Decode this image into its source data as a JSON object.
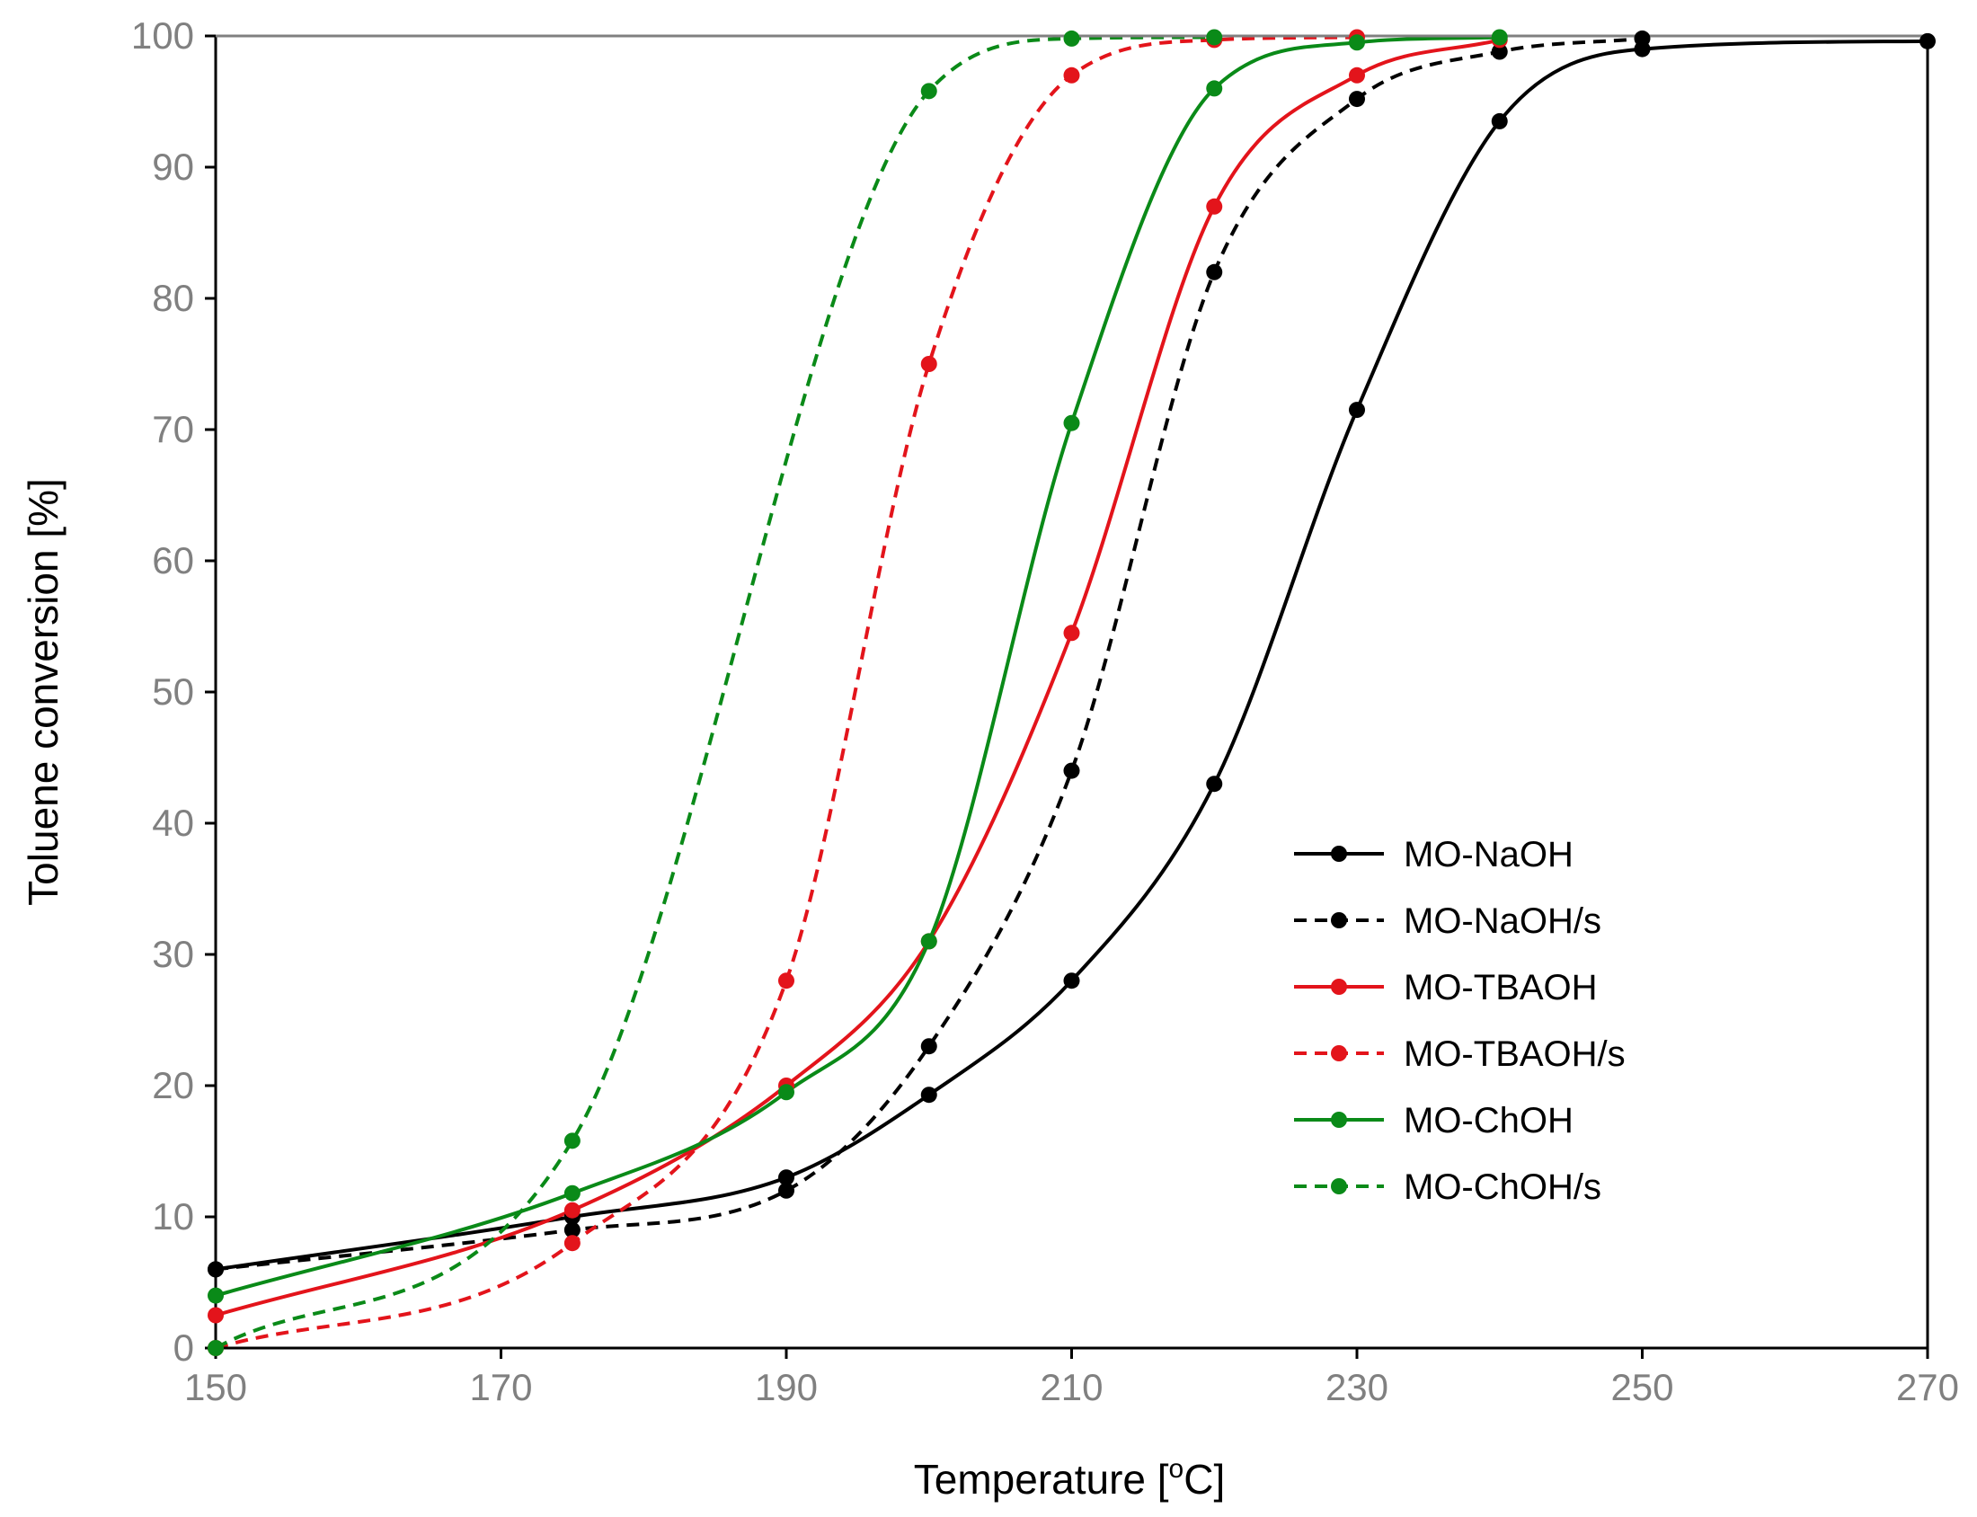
{
  "chart_data": {
    "type": "line",
    "title": "",
    "xlabel": "Temperature [°C]",
    "xlabel_main": "Temperature [",
    "xlabel_sup": "o",
    "xlabel_end": "C]",
    "ylabel": "Toluene conversion [%]",
    "xlim": [
      150,
      270
    ],
    "ylim": [
      0,
      100
    ],
    "xticks": [
      "150",
      "170",
      "190",
      "210",
      "230",
      "250",
      "270"
    ],
    "yticks": [
      "0",
      "10",
      "20",
      "30",
      "40",
      "50",
      "60",
      "70",
      "80",
      "90",
      "100"
    ],
    "grid": false,
    "legend_position": "bottom-right",
    "series": [
      {
        "name": "MO-NaOH",
        "color": "#000000",
        "dashed": false,
        "x": [
          150,
          175,
          190,
          200,
          210,
          220,
          230,
          240,
          250,
          270
        ],
        "y": [
          6,
          10,
          13,
          19.3,
          28,
          43,
          71.5,
          93.5,
          99,
          99.6
        ]
      },
      {
        "name": "MO-NaOH/s",
        "color": "#000000",
        "dashed": true,
        "x": [
          150,
          175,
          190,
          200,
          210,
          220,
          230,
          240,
          250
        ],
        "y": [
          6,
          9,
          12,
          23,
          44,
          82,
          95.2,
          98.8,
          99.8
        ]
      },
      {
        "name": "MO-TBAOH",
        "color": "#e3141b",
        "dashed": false,
        "x": [
          150,
          175,
          190,
          200,
          210,
          220,
          230,
          240
        ],
        "y": [
          2.5,
          10.5,
          20,
          31,
          54.5,
          87,
          97,
          99.7
        ]
      },
      {
        "name": "MO-TBAOH/s",
        "color": "#e3141b",
        "dashed": true,
        "x": [
          150,
          175,
          190,
          200,
          210,
          220,
          230
        ],
        "y": [
          0,
          8,
          28,
          75,
          97,
          99.7,
          99.9
        ]
      },
      {
        "name": "MO-ChOH",
        "color": "#0a8a18",
        "dashed": false,
        "x": [
          150,
          175,
          190,
          200,
          210,
          220,
          230,
          240
        ],
        "y": [
          4,
          11.8,
          19.5,
          31,
          70.5,
          96,
          99.5,
          99.9
        ]
      },
      {
        "name": "MO-ChOH/s",
        "color": "#0a8a18",
        "dashed": true,
        "x": [
          150,
          175,
          200,
          210,
          220
        ],
        "y": [
          0,
          15.8,
          95.8,
          99.8,
          99.9
        ]
      }
    ]
  }
}
